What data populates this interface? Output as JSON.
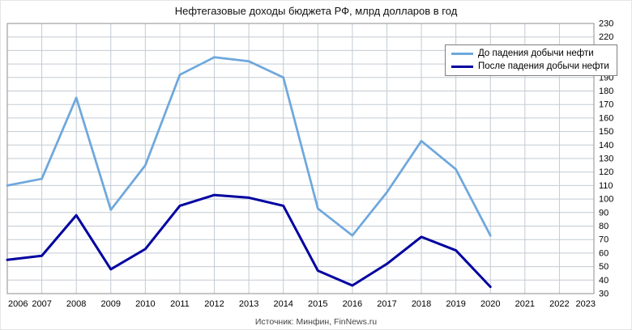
{
  "chart_data": {
    "type": "line",
    "title": "Нефтегазовые доходы бюджета РФ, млрд долларов в год",
    "source": "Источник: Минфин, FinNews.ru",
    "x_categories": [
      "2006",
      "2007",
      "2008",
      "2009",
      "2010",
      "2011",
      "2012",
      "2013",
      "2014",
      "2015",
      "2016",
      "2017",
      "2018",
      "2019",
      "2020",
      "2021",
      "2022",
      "2023"
    ],
    "ylim": [
      30,
      230
    ],
    "y_tick_step": 10,
    "grid": true,
    "legend_position": "top-right",
    "colors": {
      "grid": "#c3cbd4",
      "border": "#8c8c8c",
      "axis_text": "#000000",
      "title_text": "#111111",
      "source_text": "#444444"
    },
    "series": [
      {
        "name": "До падения добычи нефти",
        "color": "#6fa8dc",
        "width": 2.75,
        "values": [
          110,
          115,
          175,
          92,
          125,
          192,
          205,
          202,
          190,
          93,
          73,
          105,
          143,
          122,
          73
        ]
      },
      {
        "name": "После падения добычи нефти",
        "color": "#0000a0",
        "width": 3,
        "values": [
          55,
          58,
          88,
          48,
          63,
          95,
          103,
          101,
          95,
          47,
          36,
          52,
          72,
          62,
          35
        ]
      }
    ]
  }
}
